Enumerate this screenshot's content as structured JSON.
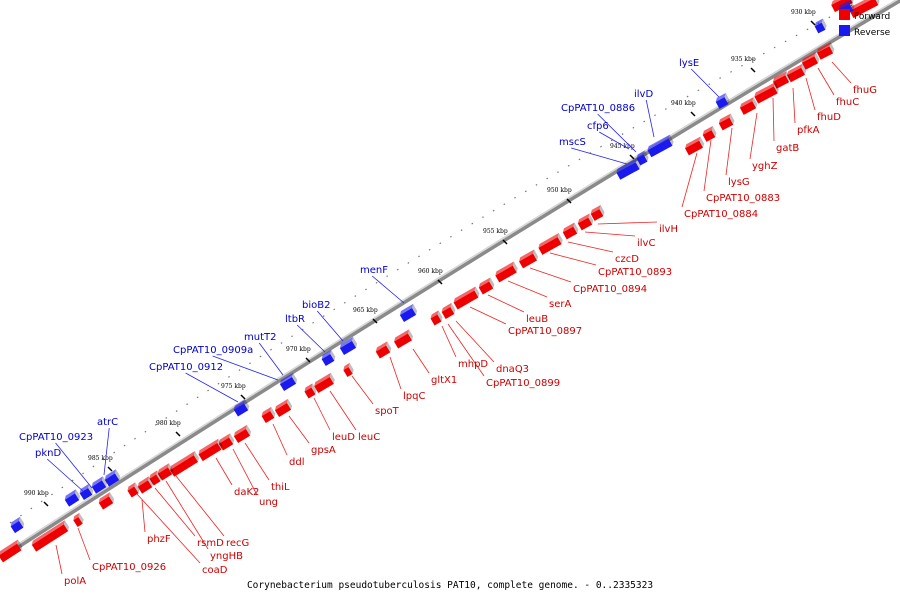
{
  "caption": "Corynebacterium pseudotuberculosis PAT10, complete genome. - 0..2335323",
  "legend": {
    "forward_label": "Forward",
    "reverse_label": "Reverse",
    "forward_color": "#ee0000",
    "reverse_color": "#1a1aee"
  },
  "ticks": [
    {
      "label": "990 kbp",
      "kbp": 990
    },
    {
      "label": "985 kbp",
      "kbp": 985
    },
    {
      "label": "980 kbp",
      "kbp": 980
    },
    {
      "label": "975 kbp",
      "kbp": 975
    },
    {
      "label": "970 kbp",
      "kbp": 970
    },
    {
      "label": "965 kbp",
      "kbp": 965
    },
    {
      "label": "960 kbp",
      "kbp": 960
    },
    {
      "label": "955 kbp",
      "kbp": 955
    },
    {
      "label": "950 kbp",
      "kbp": 950
    },
    {
      "label": "945 kbp",
      "kbp": 945
    },
    {
      "label": "940 kbp",
      "kbp": 940
    },
    {
      "label": "935 kbp",
      "kbp": 935
    },
    {
      "label": "930 kbp",
      "kbp": 930
    }
  ],
  "forward_genes": [
    {
      "name": "fhuG"
    },
    {
      "name": "fhuC"
    },
    {
      "name": "fhuD"
    },
    {
      "name": "pfkA"
    },
    {
      "name": "gatB"
    },
    {
      "name": "yghZ"
    },
    {
      "name": "lysG"
    },
    {
      "name": "CpPAT10_0883"
    },
    {
      "name": "CpPAT10_0884"
    },
    {
      "name": "ilvH"
    },
    {
      "name": "ilvC"
    },
    {
      "name": "czcD"
    },
    {
      "name": "CpPAT10_0893"
    },
    {
      "name": "CpPAT10_0894"
    },
    {
      "name": "serA"
    },
    {
      "name": "leuB"
    },
    {
      "name": "CpPAT10_0897"
    },
    {
      "name": "dnaQ3"
    },
    {
      "name": "CpPAT10_0899"
    },
    {
      "name": "mhpD"
    },
    {
      "name": "gltX1"
    },
    {
      "name": "lpqC"
    },
    {
      "name": "spoT"
    },
    {
      "name": "leuC"
    },
    {
      "name": "leuD"
    },
    {
      "name": "gpsA"
    },
    {
      "name": "ddl"
    },
    {
      "name": "thiL"
    },
    {
      "name": "ung"
    },
    {
      "name": "daK2"
    },
    {
      "name": "recG"
    },
    {
      "name": "yngHB"
    },
    {
      "name": "rsmD"
    },
    {
      "name": "coaD"
    },
    {
      "name": "phzF"
    },
    {
      "name": "CpPAT10_0926"
    },
    {
      "name": "polA"
    }
  ],
  "reverse_genes": [
    {
      "name": "lysE"
    },
    {
      "name": "ilvD"
    },
    {
      "name": "CpPAT10_0886"
    },
    {
      "name": "cfp6"
    },
    {
      "name": "mscS"
    },
    {
      "name": "menF"
    },
    {
      "name": "bioB2"
    },
    {
      "name": "ltbR"
    },
    {
      "name": "mutT2"
    },
    {
      "name": "CpPAT10_0909a"
    },
    {
      "name": "CpPAT10_0912"
    },
    {
      "name": "atrC"
    },
    {
      "name": "CpPAT10_0923"
    },
    {
      "name": "pknD"
    }
  ]
}
